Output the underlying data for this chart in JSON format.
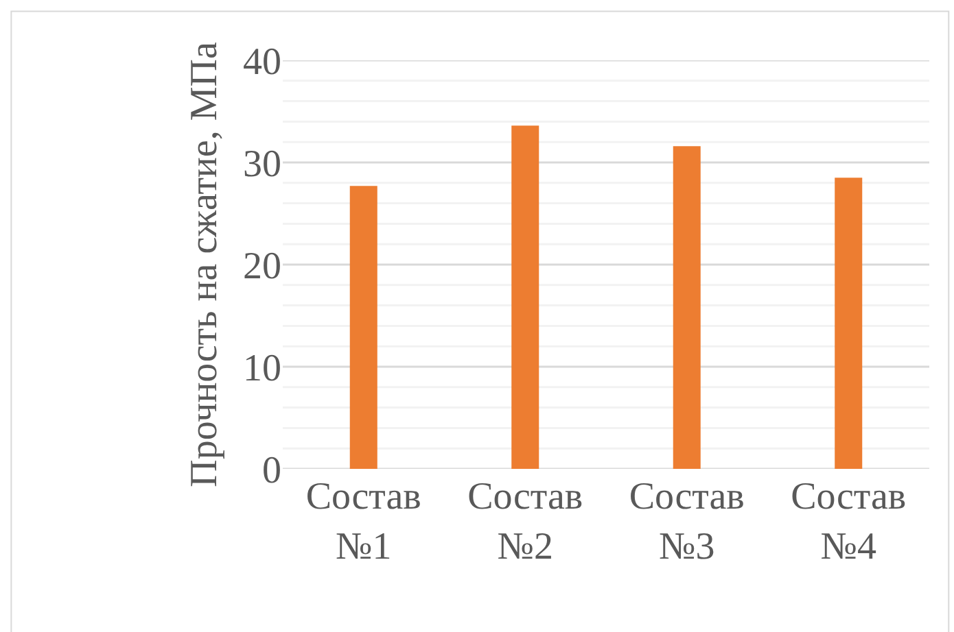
{
  "chart_data": {
    "type": "bar",
    "ylabel": "Прочность на сжатие, МПа",
    "categories": [
      "Состав №1",
      "Состав №2",
      "Состав №3",
      "Состав №4"
    ],
    "values": [
      27.7,
      33.6,
      31.6,
      28.5
    ],
    "color": "#ed7d31",
    "ylim": [
      0,
      40
    ],
    "yticks": [
      0,
      {
        "value": 2,
        "label": null
      },
      {
        "value": 4,
        "label": null
      },
      {
        "value": 6,
        "label": null
      },
      {
        "value": 8,
        "label": null
      },
      10,
      {
        "value": 12,
        "label": null
      },
      {
        "value": 14,
        "label": null
      },
      {
        "value": 16,
        "label": null
      },
      {
        "value": 18,
        "label": null
      },
      20,
      {
        "value": 22,
        "label": null
      },
      {
        "value": 24,
        "label": null
      },
      {
        "value": 26,
        "label": null
      },
      {
        "value": 28,
        "label": null
      },
      30,
      {
        "value": 32,
        "label": null
      },
      {
        "value": 34,
        "label": null
      },
      {
        "value": 36,
        "label": null
      },
      {
        "value": 38,
        "label": null
      },
      40
    ],
    "grid": true,
    "legend": false
  }
}
